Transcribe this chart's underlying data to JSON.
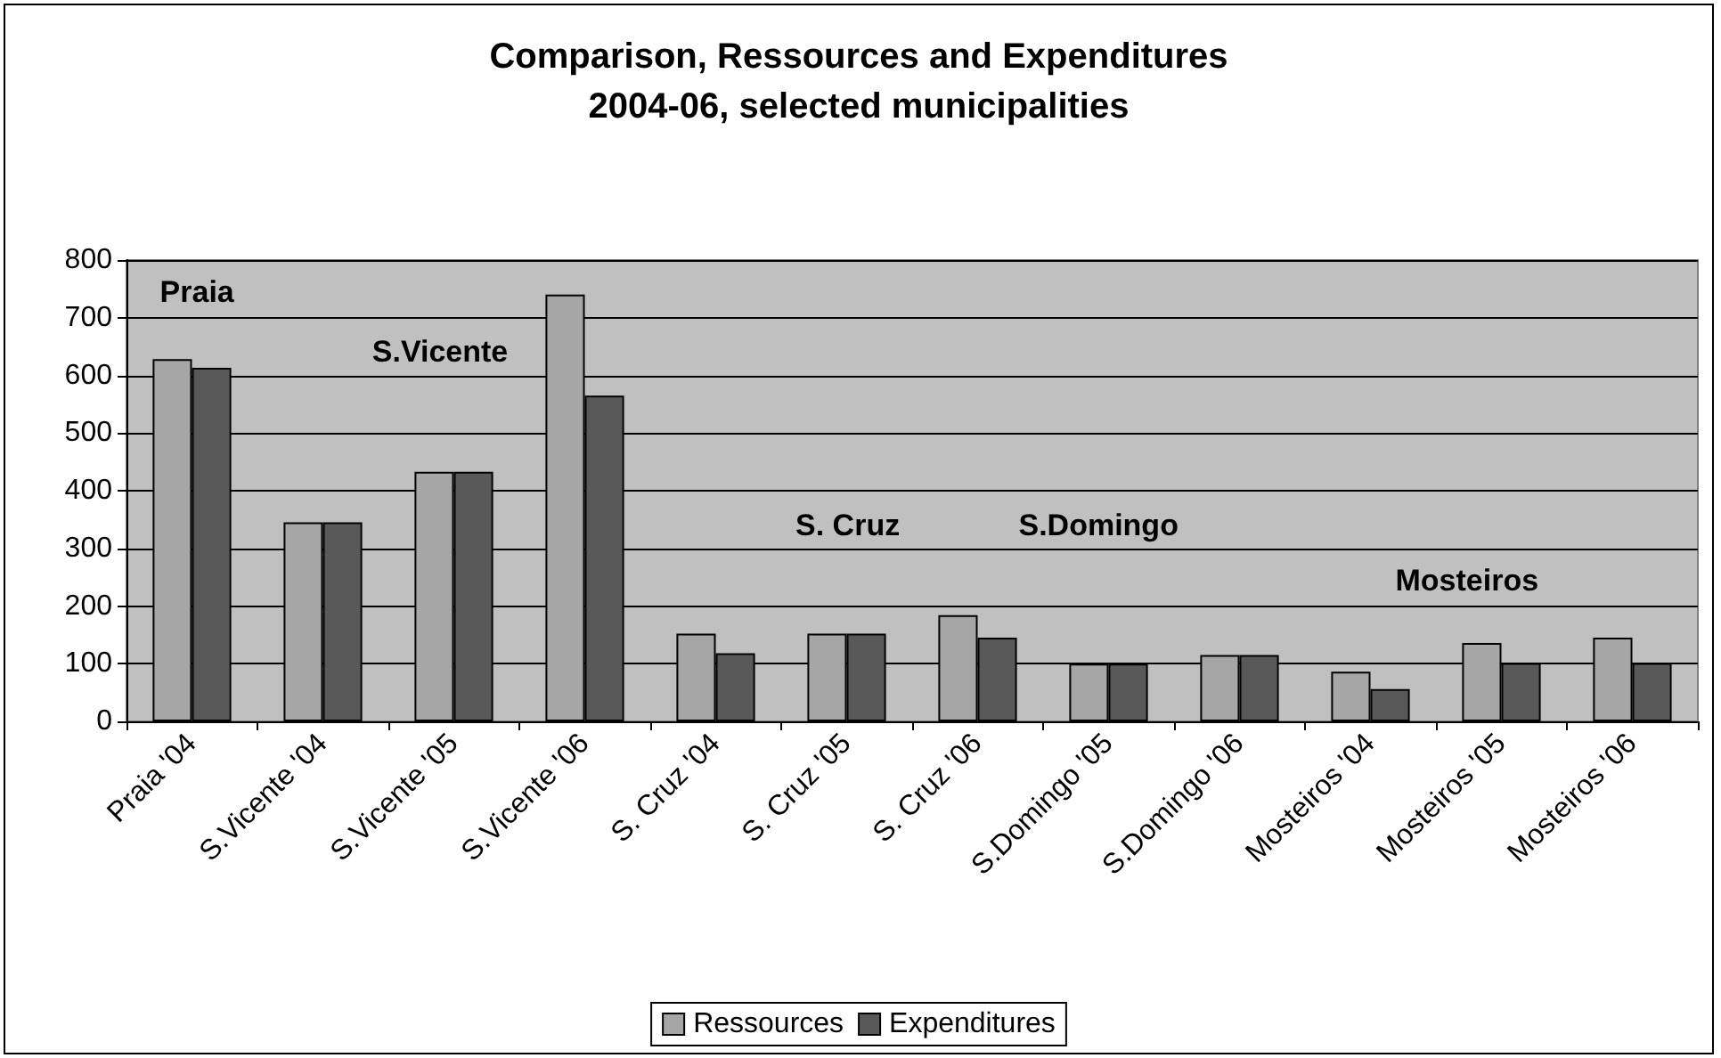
{
  "chart_data": {
    "type": "bar",
    "title": "Comparison, Ressources and Expenditures",
    "subtitle": "2004-06, selected municipalities",
    "categories": [
      "Praia '04",
      "S.Vicente '04",
      "S.Vicente '05",
      "S.Vicente '06",
      "S. Cruz '04",
      "S. Cruz '05",
      "S. Cruz '06",
      "S.Domingo '05",
      "S.Domingo '06",
      "Mosteiros '04",
      "Mosteiros '05",
      "Mosteiros '06"
    ],
    "series": [
      {
        "name": "Ressources",
        "color": "#a6a6a6",
        "values": [
          628,
          345,
          433,
          740,
          152,
          152,
          184,
          100,
          115,
          86,
          136,
          145
        ]
      },
      {
        "name": "Expenditures",
        "color": "#595959",
        "values": [
          613,
          345,
          433,
          565,
          118,
          152,
          145,
          100,
          115,
          56,
          101,
          101
        ]
      }
    ],
    "ylim": [
      0,
      800
    ],
    "yticks": [
      0,
      100,
      200,
      300,
      400,
      500,
      600,
      700,
      800
    ],
    "grid": "y",
    "legend": "bottom",
    "annotations": [
      "Praia",
      "S.Vicente",
      "S. Cruz",
      "S.Domingo",
      "Mosteiros"
    ]
  }
}
